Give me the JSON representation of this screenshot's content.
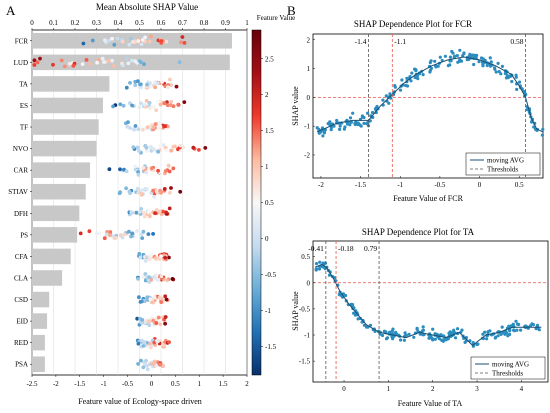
{
  "panel_labels": {
    "a": "A",
    "b": "B"
  },
  "chart_data": [
    {
      "type": "bar",
      "title": "Mean Absolute SHAP Value",
      "xlabel": "Feature value of Ecology-space driven",
      "categories": [
        "FCR",
        "LUD",
        "TA",
        "ES",
        "TF",
        "NVO",
        "CAR",
        "STIAV",
        "DFH",
        "PS",
        "CFA",
        "CLA",
        "CSD",
        "EID",
        "RED",
        "PSA"
      ],
      "values": [
        0.93,
        0.92,
        0.36,
        0.33,
        0.31,
        0.3,
        0.27,
        0.25,
        0.22,
        0.21,
        0.18,
        0.14,
        0.08,
        0.07,
        0.06,
        0.06
      ],
      "top_axis": {
        "range": [
          0,
          1
        ],
        "ticks": [
          "0",
          "0.1",
          "0.2",
          "0.3",
          "0.4",
          "0.5",
          "0.6",
          "0.7",
          "0.8",
          "0.9",
          "1"
        ]
      },
      "bottom_axis": {
        "range": [
          -2.5,
          2
        ],
        "ticks": [
          "-2.5",
          "-2",
          "-1.5",
          "-1",
          "-0.5",
          "0",
          "0.5",
          "1",
          "1.5",
          "2"
        ]
      },
      "grid": true,
      "swarm_centers": [
        -0.3,
        -1.0,
        0.0,
        0.0,
        0.0,
        0.3,
        -0.1,
        -0.1,
        -0.1,
        -0.8,
        0.0,
        0.0,
        0.0,
        0.0,
        0.0,
        0.0
      ],
      "swarm_spread": [
        1.5,
        2.3,
        0.8,
        0.9,
        0.9,
        1.3,
        0.9,
        0.9,
        0.7,
        1.2,
        0.6,
        0.6,
        0.5,
        0.5,
        0.5,
        0.5
      ],
      "colorbar": {
        "label": "Feature Value",
        "range": [
          -1.9,
          2.9
        ],
        "ticks": [
          "2.5",
          "2",
          "1.5",
          "1",
          "0.5",
          "0",
          "-0.5",
          "-1",
          "-1.5"
        ],
        "colors": [
          "#08306b",
          "#2171b5",
          "#6baed6",
          "#c6dbef",
          "#f7f7f7",
          "#fcbba1",
          "#ef3b2c",
          "#a50f15",
          "#67000d"
        ]
      }
    },
    {
      "type": "scatter",
      "title": "SHAP Dependence Plot for FCR",
      "xlabel": "Feature Value of FCR",
      "ylabel": "SHAP value",
      "xlim": [
        -2.1,
        0.8
      ],
      "ylim": [
        -2.8,
        2.2
      ],
      "xticks": [
        "-2",
        "-1.5",
        "-1",
        "-0.5",
        "0",
        "0.5"
      ],
      "yticks": [
        "-2",
        "-1",
        "0",
        "1",
        "2"
      ],
      "thresholds": [
        {
          "x": -1.4,
          "label": "-1.4",
          "style": "black"
        },
        {
          "x": -1.1,
          "label": "-1.1",
          "style": "red"
        },
        {
          "x": 0.58,
          "label": "0.58",
          "style": "black"
        }
      ],
      "zero_line_y": 0,
      "moving_avg": [
        [
          -2.05,
          -1.2
        ],
        [
          -1.8,
          -0.9
        ],
        [
          -1.6,
          -0.8
        ],
        [
          -1.4,
          -0.8
        ],
        [
          -1.25,
          -0.3
        ],
        [
          -1.1,
          0.1
        ],
        [
          -0.95,
          0.5
        ],
        [
          -0.8,
          0.8
        ],
        [
          -0.6,
          1.1
        ],
        [
          -0.4,
          1.3
        ],
        [
          -0.2,
          1.4
        ],
        [
          0.0,
          1.3
        ],
        [
          0.2,
          1.1
        ],
        [
          0.4,
          0.8
        ],
        [
          0.5,
          0.4
        ],
        [
          0.58,
          0.0
        ],
        [
          0.65,
          -0.7
        ],
        [
          0.72,
          -1.1
        ],
        [
          0.8,
          -1.2
        ]
      ],
      "legend": [
        "moving AVG",
        "Thresholds"
      ],
      "legend_position": "bottom-right"
    },
    {
      "type": "scatter",
      "title": "SHAP Dependence Plot for TA",
      "xlabel": "Feature Value of TA",
      "ylabel": "SHAP value",
      "xlim": [
        -0.7,
        4.6
      ],
      "ylim": [
        -1.9,
        0.8
      ],
      "xticks": [
        "0",
        "1",
        "2",
        "3",
        "4"
      ],
      "yticks": [
        "-1.5",
        "-1",
        "-0.5",
        "0",
        "0.5"
      ],
      "thresholds": [
        {
          "x": -0.41,
          "label": "-0.41",
          "style": "black"
        },
        {
          "x": -0.18,
          "label": "-0.18",
          "style": "red"
        },
        {
          "x": 0.79,
          "label": "0.79",
          "style": "black"
        }
      ],
      "zero_line_y": 0,
      "moving_avg": [
        [
          -0.65,
          0.3
        ],
        [
          -0.5,
          0.35
        ],
        [
          -0.4,
          0.3
        ],
        [
          -0.25,
          0.1
        ],
        [
          -0.1,
          -0.15
        ],
        [
          0.1,
          -0.4
        ],
        [
          0.3,
          -0.6
        ],
        [
          0.5,
          -0.8
        ],
        [
          0.8,
          -0.95
        ],
        [
          1.1,
          -1.0
        ],
        [
          1.4,
          -1.05
        ],
        [
          1.7,
          -0.95
        ],
        [
          2.0,
          -1.0
        ],
        [
          2.3,
          -1.05
        ],
        [
          2.6,
          -0.95
        ],
        [
          2.9,
          -1.2
        ],
        [
          3.2,
          -1.0
        ],
        [
          3.5,
          -0.95
        ],
        [
          3.8,
          -0.85
        ],
        [
          4.1,
          -0.85
        ],
        [
          4.45,
          -0.85
        ]
      ],
      "legend": [
        "moving AVG",
        "Thresholds"
      ],
      "legend_position": "bottom-right"
    }
  ]
}
